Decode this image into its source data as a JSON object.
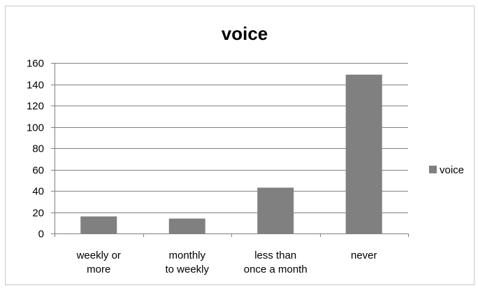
{
  "chart_data": {
    "type": "bar",
    "title": "voice",
    "categories": [
      [
        "weekly or",
        "more"
      ],
      [
        "monthly",
        "to weekly"
      ],
      [
        "less than",
        "once a month"
      ],
      [
        "never"
      ]
    ],
    "series": [
      {
        "name": "voice",
        "values": [
          16,
          14,
          43,
          149
        ]
      }
    ],
    "ylim": [
      0,
      160
    ],
    "yticks": [
      0,
      20,
      40,
      60,
      80,
      100,
      120,
      140,
      160
    ],
    "xlabel": "",
    "ylabel": "",
    "grid": true,
    "legend": "right",
    "colors": {
      "bar": "#808080",
      "grid": "#808080",
      "axis": "#808080"
    }
  }
}
